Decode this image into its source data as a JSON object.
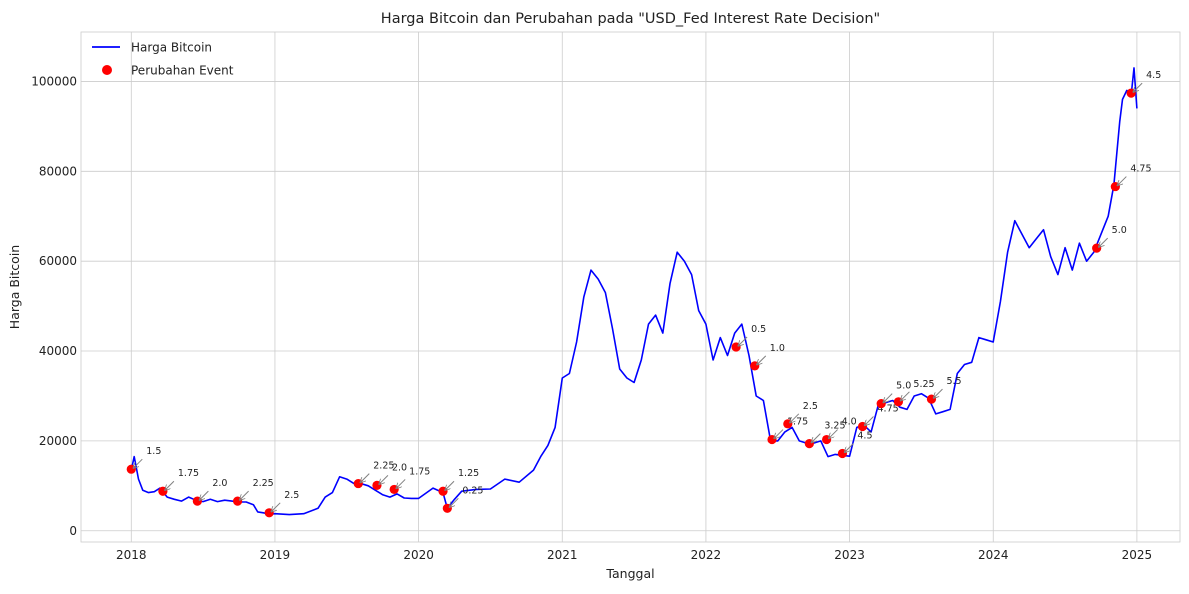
{
  "chart_data": {
    "type": "line",
    "title": "Harga Bitcoin dan Perubahan pada \"USD_Fed Interest Rate Decision\"",
    "xlabel": "Tanggal",
    "ylabel": "Harga Bitcoin",
    "xlim": [
      2017.65,
      2025.3
    ],
    "ylim": [
      -2500,
      111000
    ],
    "x_ticks": [
      2018,
      2019,
      2020,
      2021,
      2022,
      2023,
      2024,
      2025
    ],
    "x_tick_labels": [
      "2018",
      "2019",
      "2020",
      "2021",
      "2022",
      "2023",
      "2024",
      "2025"
    ],
    "y_ticks": [
      0,
      20000,
      40000,
      60000,
      80000,
      100000
    ],
    "y_tick_labels": [
      "0",
      "20000",
      "40000",
      "60000",
      "80000",
      "100000"
    ],
    "grid": true,
    "legend": {
      "placement": "top-left",
      "entries": [
        {
          "label": "Harga Bitcoin",
          "marker": "line"
        },
        {
          "label": "Perubahan Event",
          "marker": "dot"
        }
      ]
    },
    "colors": {
      "line": "#0000ff",
      "event": "#ff0000",
      "arrow": "#808080",
      "grid": "#cccccc"
    },
    "series": [
      {
        "name": "Harga Bitcoin",
        "x": [
          2018.0,
          2018.02,
          2018.05,
          2018.08,
          2018.12,
          2018.16,
          2018.2,
          2018.25,
          2018.3,
          2018.35,
          2018.4,
          2018.45,
          2018.5,
          2018.55,
          2018.6,
          2018.65,
          2018.7,
          2018.75,
          2018.8,
          2018.85,
          2018.88,
          2018.92,
          2018.96,
          2019.0,
          2019.1,
          2019.2,
          2019.3,
          2019.35,
          2019.4,
          2019.45,
          2019.5,
          2019.55,
          2019.6,
          2019.65,
          2019.7,
          2019.75,
          2019.8,
          2019.85,
          2019.9,
          2019.95,
          2020.0,
          2020.1,
          2020.17,
          2020.2,
          2020.25,
          2020.3,
          2020.4,
          2020.5,
          2020.6,
          2020.7,
          2020.8,
          2020.85,
          2020.9,
          2020.95,
          2021.0,
          2021.05,
          2021.1,
          2021.15,
          2021.2,
          2021.25,
          2021.3,
          2021.35,
          2021.4,
          2021.45,
          2021.5,
          2021.55,
          2021.6,
          2021.65,
          2021.7,
          2021.75,
          2021.8,
          2021.85,
          2021.9,
          2021.95,
          2022.0,
          2022.05,
          2022.1,
          2022.15,
          2022.2,
          2022.25,
          2022.3,
          2022.35,
          2022.4,
          2022.45,
          2022.5,
          2022.55,
          2022.6,
          2022.65,
          2022.7,
          2022.75,
          2022.8,
          2022.85,
          2022.9,
          2022.95,
          2023.0,
          2023.05,
          2023.1,
          2023.15,
          2023.2,
          2023.25,
          2023.3,
          2023.35,
          2023.4,
          2023.45,
          2023.5,
          2023.55,
          2023.6,
          2023.65,
          2023.7,
          2023.75,
          2023.8,
          2023.85,
          2023.9,
          2023.95,
          2024.0,
          2024.05,
          2024.1,
          2024.15,
          2024.2,
          2024.25,
          2024.3,
          2024.35,
          2024.4,
          2024.45,
          2024.5,
          2024.55,
          2024.6,
          2024.65,
          2024.7,
          2024.75,
          2024.8,
          2024.84,
          2024.88,
          2024.9,
          2024.93,
          2024.96,
          2024.98,
          2025.0
        ],
        "y": [
          13500,
          16500,
          11500,
          9000,
          8500,
          8700,
          9500,
          7500,
          7000,
          6600,
          7500,
          6800,
          6500,
          7000,
          6500,
          6800,
          6600,
          6400,
          6400,
          5800,
          4200,
          4000,
          3700,
          3800,
          3600,
          3800,
          5000,
          7500,
          8500,
          12000,
          11500,
          10500,
          10500,
          10000,
          9000,
          8000,
          7500,
          8200,
          7300,
          7200,
          7200,
          9500,
          8500,
          5000,
          7000,
          8800,
          9200,
          9300,
          11500,
          10800,
          13500,
          16500,
          19000,
          23000,
          34000,
          35000,
          42000,
          52000,
          58000,
          56000,
          53000,
          45000,
          36000,
          34000,
          33000,
          38000,
          46000,
          48000,
          44000,
          55000,
          62000,
          60000,
          57000,
          49000,
          46000,
          38000,
          43000,
          39000,
          44000,
          46000,
          39000,
          30000,
          29000,
          20000,
          20000,
          22000,
          23000,
          20000,
          19500,
          19500,
          20000,
          16500,
          17000,
          16800,
          16600,
          23000,
          23500,
          22000,
          28000,
          28500,
          29000,
          27500,
          27000,
          30000,
          30500,
          29500,
          26000,
          26500,
          27000,
          35000,
          37000,
          37500,
          43000,
          42500,
          42000,
          51000,
          62000,
          69000,
          66000,
          63000,
          65000,
          67000,
          61000,
          57000,
          63000,
          58000,
          64000,
          60000,
          62000,
          66000,
          70000,
          77000,
          91000,
          96000,
          98000,
          97000,
          103000,
          94000
        ]
      },
      {
        "name": "Perubahan Event",
        "points": [
          {
            "x": 2018.0,
            "y": 13700,
            "label": "1.5"
          },
          {
            "x": 2018.22,
            "y": 8800,
            "label": "1.75"
          },
          {
            "x": 2018.46,
            "y": 6600,
            "label": "2.0"
          },
          {
            "x": 2018.74,
            "y": 6600,
            "label": "2.25"
          },
          {
            "x": 2018.96,
            "y": 4000,
            "label": "2.5"
          },
          {
            "x": 2019.58,
            "y": 10500,
            "label": "2.25"
          },
          {
            "x": 2019.71,
            "y": 10100,
            "label": "2.0"
          },
          {
            "x": 2019.83,
            "y": 9200,
            "label": "1.75"
          },
          {
            "x": 2020.17,
            "y": 8800,
            "label": "1.25"
          },
          {
            "x": 2020.2,
            "y": 5000,
            "label": "0.25"
          },
          {
            "x": 2022.21,
            "y": 40900,
            "label": "0.5"
          },
          {
            "x": 2022.34,
            "y": 36700,
            "label": "1.0"
          },
          {
            "x": 2022.46,
            "y": 20300,
            "label": "1.75"
          },
          {
            "x": 2022.57,
            "y": 23800,
            "label": "2.5"
          },
          {
            "x": 2022.72,
            "y": 19400,
            "label": "3.25"
          },
          {
            "x": 2022.84,
            "y": 20300,
            "label": "4.0"
          },
          {
            "x": 2022.95,
            "y": 17200,
            "label": "4.5"
          },
          {
            "x": 2023.09,
            "y": 23200,
            "label": "4.75"
          },
          {
            "x": 2023.22,
            "y": 28300,
            "label": "5.0"
          },
          {
            "x": 2023.34,
            "y": 28700,
            "label": "5.25"
          },
          {
            "x": 2023.57,
            "y": 29300,
            "label": "5.5"
          },
          {
            "x": 2024.72,
            "y": 62900,
            "label": "5.0"
          },
          {
            "x": 2024.85,
            "y": 76600,
            "label": "4.75"
          },
          {
            "x": 2024.96,
            "y": 97400,
            "label": "4.5"
          }
        ]
      }
    ]
  }
}
